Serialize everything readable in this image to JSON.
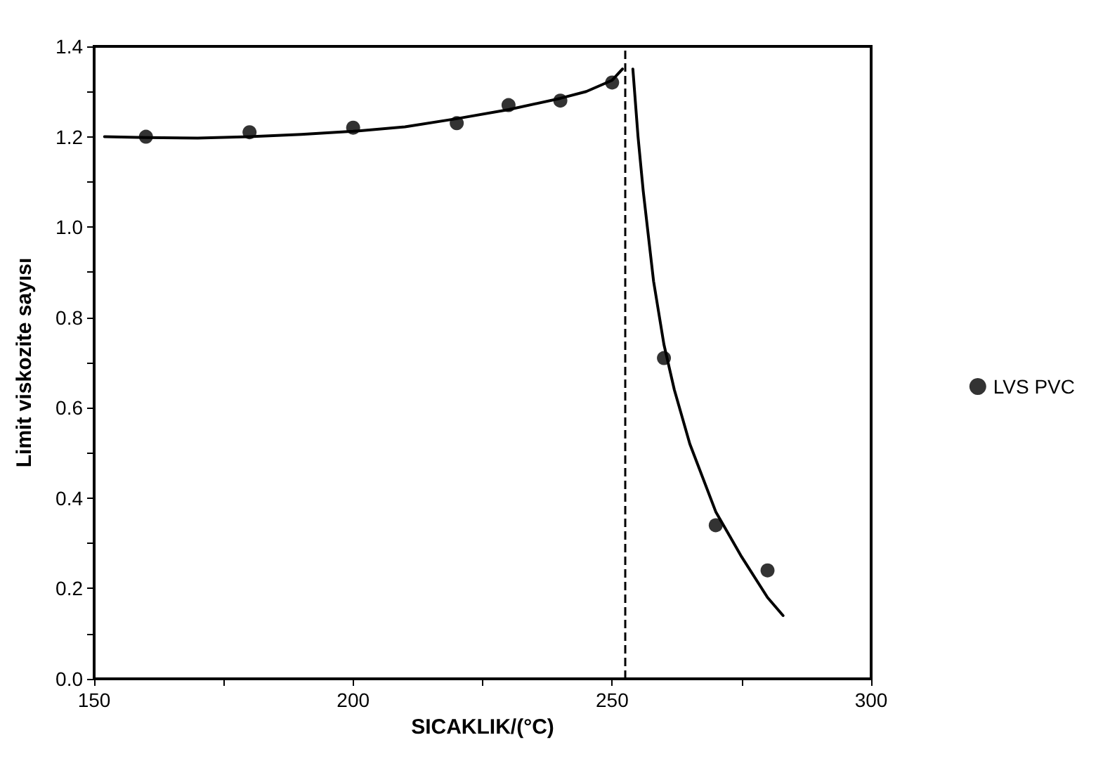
{
  "chart_data": {
    "type": "scatter",
    "xlabel": "SICAKLIK/(°C)",
    "ylabel": "Limit viskozite sayısı",
    "xlim": [
      150,
      300
    ],
    "xticks": [
      150,
      {
        "value": 175,
        "label": null
      },
      200,
      {
        "value": 225,
        "label": null
      },
      250,
      {
        "value": 275,
        "label": null
      },
      300
    ],
    "ylim": [
      0,
      1.4
    ],
    "yticks": [
      "0.0",
      {
        "value": 0.1,
        "label": null
      },
      0.2,
      {
        "value": 0.3,
        "label": null
      },
      0.4,
      {
        "value": 0.5,
        "label": null
      },
      0.6,
      {
        "value": 0.7,
        "label": null
      },
      0.8,
      {
        "value": 0.9,
        "label": null
      },
      "1.0",
      {
        "value": 1.1,
        "label": null
      },
      1.2,
      {
        "value": 1.3,
        "label": null
      },
      1.4
    ],
    "grid": false,
    "legend": "right",
    "marker": "circle",
    "series": [
      {
        "name": "LVS PVC",
        "color": "#000000",
        "x": [
          160,
          180,
          200,
          220,
          230,
          240,
          250,
          260,
          270,
          280
        ],
        "values": [
          1.2,
          1.21,
          1.22,
          1.23,
          1.27,
          1.28,
          1.32,
          0.71,
          0.34,
          0.24
        ]
      },
      {
        "type": "line",
        "color": "#000000",
        "marker": "none",
        "x": [
          152,
          160,
          170,
          180,
          190,
          200,
          210,
          220,
          230,
          240,
          245,
          250,
          252
        ],
        "values": [
          1.2,
          1.198,
          1.197,
          1.2,
          1.205,
          1.212,
          1.222,
          1.24,
          1.26,
          1.285,
          1.3,
          1.325,
          1.35
        ]
      },
      {
        "type": "line",
        "color": "#000000",
        "marker": "none",
        "x": [
          254,
          255,
          256,
          258,
          260,
          262,
          265,
          270,
          275,
          280,
          283
        ],
        "values": [
          1.35,
          1.2,
          1.08,
          0.88,
          0.74,
          0.64,
          0.52,
          0.37,
          0.27,
          0.18,
          0.14
        ]
      }
    ],
    "ref_lines": [
      {
        "axis": "x",
        "value": 252.5,
        "line_style": "dashed",
        "color": "#000000"
      }
    ]
  }
}
